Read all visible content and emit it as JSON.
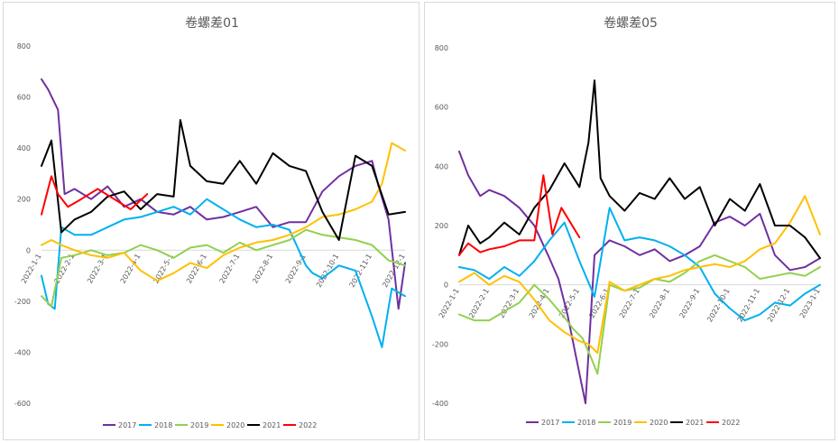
{
  "chart_data": [
    {
      "type": "line",
      "title": "卷螺差01",
      "ylim": [
        -600,
        800
      ],
      "yticks": [
        -600,
        -400,
        -200,
        0,
        200,
        400,
        600,
        800
      ],
      "xlabels": [
        "2022-1-1",
        "2022-2-1",
        "2022-3-1",
        "2022-4-1",
        "2022-5-1",
        "2022-6-1",
        "2022-7-1",
        "2022-8-1",
        "2022-9-1",
        "2022-10-1",
        "2022-11-1",
        "2022-12-1"
      ],
      "legend": [
        "2017",
        "2018",
        "2019",
        "2020",
        "2021",
        "2022"
      ],
      "legend_position": "bottom",
      "grid": false,
      "series": [
        {
          "name": "2017",
          "color": "#7030a0",
          "x": [
            0,
            0.2,
            0.5,
            0.7,
            1,
            1.5,
            2,
            2.5,
            3,
            3.5,
            4,
            4.5,
            5,
            5.5,
            6,
            6.5,
            7,
            7.5,
            8,
            8.5,
            9,
            9.5,
            10,
            10.2,
            10.5,
            10.8,
            11
          ],
          "values": [
            670,
            630,
            550,
            220,
            240,
            200,
            250,
            170,
            200,
            150,
            140,
            170,
            120,
            130,
            150,
            170,
            90,
            110,
            110,
            230,
            290,
            330,
            350,
            250,
            120,
            -230,
            -50
          ]
        },
        {
          "name": "2018",
          "color": "#00b0f0",
          "x": [
            0,
            0.2,
            0.4,
            0.6,
            1,
            1.5,
            2,
            2.5,
            3,
            3.5,
            4,
            4.5,
            5,
            5.5,
            6,
            6.5,
            7,
            7.5,
            8,
            8.2,
            8.5,
            9,
            9.5,
            10,
            10.3,
            10.6,
            11
          ],
          "values": [
            -100,
            -210,
            -230,
            90,
            60,
            60,
            90,
            120,
            130,
            150,
            170,
            140,
            200,
            160,
            120,
            90,
            100,
            80,
            -60,
            -90,
            -110,
            -60,
            -80,
            -260,
            -380,
            -150,
            -180
          ]
        },
        {
          "name": "2019",
          "color": "#92d050",
          "x": [
            0,
            0.3,
            0.6,
            1,
            1.5,
            2,
            2.5,
            3,
            3.5,
            4,
            4.5,
            5,
            5.5,
            6,
            6.5,
            7,
            7.5,
            8,
            8.5,
            9,
            9.5,
            10,
            10.5,
            11
          ],
          "values": [
            -180,
            -220,
            -30,
            -20,
            0,
            -20,
            -10,
            20,
            0,
            -30,
            10,
            20,
            -10,
            30,
            0,
            20,
            40,
            80,
            60,
            50,
            40,
            20,
            -40,
            -60
          ]
        },
        {
          "name": "2020",
          "color": "#ffc000",
          "x": [
            0,
            0.3,
            0.6,
            1,
            1.5,
            2,
            2.5,
            3,
            3.5,
            4,
            4.5,
            5,
            5.5,
            6,
            6.5,
            7,
            7.5,
            8,
            8.5,
            9,
            9.5,
            10,
            10.3,
            10.6,
            11
          ],
          "values": [
            20,
            40,
            20,
            0,
            -20,
            -30,
            -10,
            -80,
            -120,
            -90,
            -50,
            -70,
            -20,
            10,
            30,
            40,
            60,
            90,
            130,
            140,
            160,
            190,
            260,
            420,
            390
          ]
        },
        {
          "name": "2021",
          "color": "#000000",
          "x": [
            0,
            0.3,
            0.6,
            1,
            1.5,
            2,
            2.5,
            3,
            3.5,
            4,
            4.2,
            4.5,
            5,
            5.5,
            6,
            6.5,
            7,
            7.5,
            8,
            8.5,
            9,
            9.5,
            10,
            10.5,
            11
          ],
          "values": [
            330,
            430,
            70,
            120,
            150,
            210,
            230,
            160,
            220,
            210,
            510,
            330,
            270,
            260,
            350,
            260,
            380,
            330,
            310,
            150,
            40,
            370,
            330,
            140,
            150
          ]
        },
        {
          "name": "2022",
          "color": "#ff0000",
          "x": [
            0,
            0.3,
            0.5,
            0.8,
            1.2,
            1.7,
            2.2,
            2.7,
            3.2
          ],
          "values": [
            140,
            290,
            220,
            170,
            200,
            240,
            200,
            160,
            220
          ]
        }
      ]
    },
    {
      "type": "line",
      "title": "卷螺差05",
      "ylim": [
        -400,
        800
      ],
      "yticks": [
        -400,
        -200,
        0,
        200,
        400,
        600,
        800
      ],
      "xlabels": [
        "2022-1-1",
        "2022-2-1",
        "2022-3-1",
        "2022-4-1",
        "2022-5-1",
        "2022-6-1",
        "2022-7-1",
        "2022-8-1",
        "2022-9-1",
        "2022-10-1",
        "2022-11-1",
        "2022-12-1",
        "2023-1-1"
      ],
      "legend": [
        "2017",
        "2018",
        "2019",
        "2020",
        "2021",
        "2022"
      ],
      "legend_position": "bottom",
      "grid": false,
      "series": [
        {
          "name": "2017",
          "color": "#7030a0",
          "x": [
            0,
            0.3,
            0.7,
            1,
            1.5,
            2,
            2.5,
            3,
            3.3,
            3.6,
            3.9,
            4.2,
            4.5,
            5,
            5.5,
            6,
            6.5,
            7,
            7.5,
            8,
            8.5,
            9,
            9.5,
            10,
            10.5,
            11,
            11.5,
            12
          ],
          "values": [
            450,
            370,
            300,
            320,
            300,
            260,
            200,
            90,
            20,
            -100,
            -250,
            -400,
            100,
            150,
            130,
            100,
            120,
            80,
            100,
            130,
            210,
            230,
            200,
            240,
            100,
            50,
            60,
            90
          ]
        },
        {
          "name": "2018",
          "color": "#00b0f0",
          "x": [
            0,
            0.5,
            1,
            1.5,
            2,
            2.5,
            3,
            3.5,
            4,
            4.5,
            5,
            5.5,
            6,
            6.5,
            7,
            7.5,
            8,
            8.5,
            9,
            9.5,
            10,
            10.5,
            11,
            11.5,
            12
          ],
          "values": [
            60,
            50,
            20,
            60,
            30,
            80,
            150,
            210,
            80,
            -40,
            260,
            150,
            160,
            150,
            130,
            100,
            60,
            -30,
            -80,
            -120,
            -100,
            -60,
            -70,
            -30,
            0
          ]
        },
        {
          "name": "2019",
          "color": "#92d050",
          "x": [
            0,
            0.5,
            1,
            1.5,
            2,
            2.5,
            3,
            3.5,
            3.8,
            4.1,
            4.4,
            4.6,
            5,
            5.5,
            6,
            6.5,
            7,
            7.5,
            8,
            8.5,
            9,
            9.5,
            10,
            10.5,
            11,
            11.5,
            12
          ],
          "values": [
            -100,
            -120,
            -120,
            -90,
            -60,
            0,
            -50,
            -110,
            -150,
            -180,
            -250,
            -300,
            0,
            -20,
            -10,
            20,
            10,
            40,
            80,
            100,
            80,
            60,
            20,
            30,
            40,
            30,
            60
          ]
        },
        {
          "name": "2020",
          "color": "#ffc000",
          "x": [
            0,
            0.5,
            1,
            1.5,
            2,
            2.5,
            3,
            3.5,
            4,
            4.3,
            4.6,
            5,
            5.5,
            6,
            6.5,
            7,
            7.5,
            8,
            8.5,
            9,
            9.5,
            10,
            10.5,
            11,
            11.5,
            12
          ],
          "values": [
            10,
            40,
            0,
            30,
            10,
            -50,
            -120,
            -160,
            -190,
            -200,
            -230,
            10,
            -20,
            0,
            20,
            30,
            50,
            60,
            70,
            60,
            80,
            120,
            140,
            210,
            300,
            170
          ]
        },
        {
          "name": "2021",
          "color": "#000000",
          "x": [
            0,
            0.3,
            0.7,
            1,
            1.5,
            2,
            2.5,
            3,
            3.5,
            4,
            4.3,
            4.5,
            4.7,
            5,
            5.5,
            6,
            6.5,
            7,
            7.5,
            8,
            8.5,
            9,
            9.5,
            10,
            10.5,
            11,
            11.5,
            12
          ],
          "values": [
            100,
            200,
            140,
            160,
            210,
            170,
            260,
            320,
            410,
            330,
            480,
            690,
            360,
            300,
            250,
            310,
            290,
            360,
            290,
            330,
            200,
            290,
            250,
            340,
            200,
            200,
            160,
            90
          ]
        },
        {
          "name": "2022",
          "color": "#ff0000",
          "x": [
            0,
            0.3,
            0.7,
            1,
            1.5,
            2,
            2.5,
            2.8,
            3.1,
            3.4,
            3.7,
            4
          ],
          "values": [
            100,
            140,
            110,
            120,
            130,
            150,
            150,
            370,
            170,
            260,
            210,
            160
          ]
        }
      ]
    }
  ]
}
